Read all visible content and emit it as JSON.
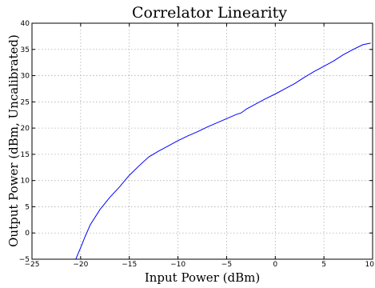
{
  "chart_data": {
    "type": "line",
    "title": "Correlator Linearity",
    "xlabel": "Input Power (dBm)",
    "ylabel": "Output Power (dBm, Uncalibrated)",
    "xlim": [
      -25,
      10
    ],
    "ylim": [
      -5,
      40
    ],
    "xticks": [
      "−25",
      "−20",
      "−15",
      "−10",
      "−5",
      "0",
      "5",
      "10"
    ],
    "yticks": [
      "−5",
      "0",
      "5",
      "10",
      "15",
      "20",
      "25",
      "30",
      "35",
      "40"
    ],
    "xtick_values": [
      -25,
      -20,
      -15,
      -10,
      -5,
      0,
      5,
      10
    ],
    "ytick_values": [
      -5,
      0,
      5,
      10,
      15,
      20,
      25,
      30,
      35,
      40
    ],
    "grid": true,
    "series": [
      {
        "color": "#0000ff",
        "x": [
          -20.5,
          -20.0,
          -19.5,
          -19.0,
          -18.0,
          -17.0,
          -16.0,
          -15.0,
          -14.0,
          -13.0,
          -12.0,
          -11.0,
          -10.0,
          -9.0,
          -8.0,
          -7.0,
          -6.0,
          -5.0,
          -4.0,
          -3.5,
          -3.0,
          -2.0,
          -1.0,
          0.0,
          1.0,
          2.0,
          3.0,
          4.0,
          5.0,
          6.0,
          7.0,
          8.0,
          9.0,
          9.8
        ],
        "y": [
          -5.0,
          -2.8,
          -0.5,
          1.6,
          4.5,
          6.8,
          8.8,
          11.0,
          12.8,
          14.5,
          15.6,
          16.6,
          17.6,
          18.5,
          19.3,
          20.2,
          21.0,
          21.8,
          22.6,
          22.9,
          23.6,
          24.6,
          25.6,
          26.5,
          27.5,
          28.5,
          29.7,
          30.8,
          31.8,
          32.8,
          34.0,
          35.0,
          35.9,
          36.2
        ]
      }
    ]
  }
}
